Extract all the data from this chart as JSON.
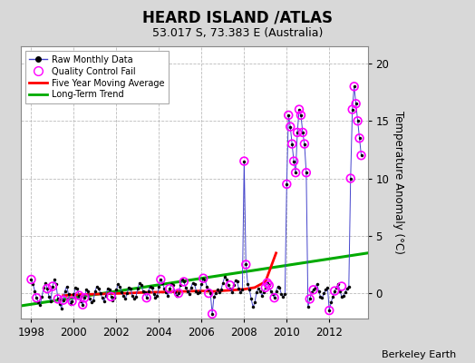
{
  "title": "HEARD ISLAND /ATLAS",
  "subtitle": "53.017 S, 73.383 E (Australia)",
  "ylabel": "Temperature Anomaly (°C)",
  "credit": "Berkeley Earth",
  "xlim": [
    1997.5,
    2013.8
  ],
  "ylim": [
    -2.2,
    21.5
  ],
  "yticks": [
    0,
    5,
    10,
    15,
    20
  ],
  "xticks": [
    1998,
    2000,
    2002,
    2004,
    2006,
    2008,
    2010,
    2012
  ],
  "background_color": "#d8d8d8",
  "plot_bg_color": "#ffffff",
  "grid_color": "#bbbbbb",
  "raw_color": "#4444cc",
  "qc_color": "#ff00ff",
  "ma_color": "#ff0000",
  "trend_color": "#00aa00",
  "raw_monthly_x": [
    1998.0,
    1998.083,
    1998.167,
    1998.25,
    1998.333,
    1998.417,
    1998.5,
    1998.583,
    1998.667,
    1998.75,
    1998.833,
    1998.917,
    1999.0,
    1999.083,
    1999.167,
    1999.25,
    1999.333,
    1999.417,
    1999.5,
    1999.583,
    1999.667,
    1999.75,
    1999.833,
    1999.917,
    2000.0,
    2000.083,
    2000.167,
    2000.25,
    2000.333,
    2000.417,
    2000.5,
    2000.583,
    2000.667,
    2000.75,
    2000.833,
    2000.917,
    2001.0,
    2001.083,
    2001.167,
    2001.25,
    2001.333,
    2001.417,
    2001.5,
    2001.583,
    2001.667,
    2001.75,
    2001.833,
    2001.917,
    2002.0,
    2002.083,
    2002.167,
    2002.25,
    2002.333,
    2002.417,
    2002.5,
    2002.583,
    2002.667,
    2002.75,
    2002.833,
    2002.917,
    2003.0,
    2003.083,
    2003.167,
    2003.25,
    2003.333,
    2003.417,
    2003.5,
    2003.583,
    2003.667,
    2003.75,
    2003.833,
    2003.917,
    2004.0,
    2004.083,
    2004.167,
    2004.25,
    2004.333,
    2004.417,
    2004.5,
    2004.583,
    2004.667,
    2004.75,
    2004.833,
    2004.917,
    2005.0,
    2005.083,
    2005.167,
    2005.25,
    2005.333,
    2005.417,
    2005.5,
    2005.583,
    2005.667,
    2005.75,
    2005.833,
    2005.917,
    2006.0,
    2006.083,
    2006.167,
    2006.25,
    2006.333,
    2006.417,
    2006.5,
    2006.583,
    2006.667,
    2006.75,
    2006.833,
    2006.917,
    2007.0,
    2007.083,
    2007.167,
    2007.25,
    2007.333,
    2007.417,
    2007.5,
    2007.583,
    2007.667,
    2007.75,
    2007.833,
    2007.917,
    2008.0,
    2008.083,
    2008.167,
    2008.25,
    2008.333,
    2008.417,
    2008.5,
    2008.583,
    2008.667,
    2008.75,
    2008.833,
    2008.917,
    2009.0,
    2009.083,
    2009.167,
    2009.25,
    2009.333,
    2009.417,
    2009.5,
    2009.583,
    2009.667,
    2009.75,
    2009.833,
    2009.917,
    2010.0,
    2010.083,
    2010.167,
    2010.25,
    2010.333,
    2010.417,
    2010.5,
    2010.583,
    2010.667,
    2010.75,
    2010.833,
    2010.917,
    2011.0,
    2011.083,
    2011.167,
    2011.25,
    2011.333,
    2011.417,
    2011.5,
    2011.583,
    2011.667,
    2011.75,
    2011.833,
    2011.917,
    2012.0,
    2012.083,
    2012.167,
    2012.25,
    2012.333,
    2012.417,
    2012.5,
    2012.583,
    2012.667,
    2012.75,
    2012.833,
    2012.917,
    2013.0,
    2013.083,
    2013.167,
    2013.25,
    2013.333,
    2013.417,
    2013.5
  ],
  "raw_monthly_y": [
    1.2,
    0.8,
    0.2,
    -0.4,
    -0.8,
    -1.0,
    -0.3,
    0.5,
    0.9,
    0.4,
    -0.3,
    -0.7,
    0.6,
    1.2,
    0.8,
    -0.5,
    -0.9,
    -1.3,
    -0.6,
    0.2,
    0.6,
    -0.1,
    -0.9,
    -0.7,
    -0.1,
    0.5,
    0.4,
    -0.2,
    -0.7,
    -1.0,
    -0.4,
    0.3,
    0.2,
    -0.5,
    -0.8,
    -0.6,
    0.2,
    0.6,
    0.4,
    0.0,
    -0.4,
    -0.7,
    -0.2,
    0.4,
    0.3,
    -0.3,
    -0.6,
    -0.4,
    0.3,
    0.8,
    0.6,
    0.1,
    -0.2,
    -0.5,
    0.0,
    0.5,
    0.4,
    -0.2,
    -0.5,
    -0.3,
    0.4,
    0.9,
    0.7,
    0.2,
    0.1,
    -0.4,
    0.2,
    0.6,
    0.5,
    -0.1,
    -0.4,
    -0.2,
    0.6,
    1.2,
    0.9,
    0.4,
    0.1,
    -0.2,
    0.4,
    0.8,
    0.7,
    0.1,
    -0.2,
    0.0,
    0.7,
    1.2,
    1.0,
    0.5,
    0.2,
    -0.1,
    0.5,
    0.9,
    0.8,
    0.2,
    0.0,
    0.1,
    0.8,
    1.3,
    1.1,
    0.6,
    0.3,
    0.0,
    -1.8,
    -0.3,
    0.0,
    0.3,
    0.1,
    0.3,
    0.9,
    1.4,
    1.2,
    0.7,
    0.4,
    0.1,
    0.7,
    1.1,
    1.0,
    0.4,
    0.1,
    0.3,
    11.5,
    2.5,
    0.8,
    0.3,
    -0.5,
    -1.2,
    -0.8,
    0.1,
    0.4,
    0.2,
    -0.2,
    0.1,
    0.5,
    0.9,
    0.7,
    0.2,
    -0.1,
    -0.4,
    0.2,
    0.6,
    0.5,
    -0.1,
    -0.3,
    -0.1,
    9.5,
    15.5,
    14.5,
    13.0,
    11.5,
    10.5,
    14.0,
    16.0,
    15.5,
    14.0,
    13.0,
    10.5,
    -1.2,
    -0.5,
    0.1,
    0.3,
    0.5,
    0.8,
    0.2,
    -0.3,
    -0.4,
    0.0,
    0.3,
    0.5,
    -1.5,
    -0.8,
    -0.3,
    0.2,
    0.5,
    0.8,
    0.2,
    -0.3,
    -0.2,
    0.1,
    0.4,
    0.6,
    10.0,
    16.0,
    18.0,
    16.5,
    15.0,
    13.5,
    12.0
  ],
  "qc_fail_x": [
    1998.0,
    1998.25,
    1998.75,
    1999.0,
    1999.25,
    1999.5,
    1999.917,
    2000.25,
    2000.417,
    2000.5,
    2001.75,
    2003.417,
    2004.083,
    2004.5,
    2004.917,
    2005.167,
    2006.083,
    2006.333,
    2006.5,
    2007.333,
    2008.0,
    2008.083,
    2009.0,
    2009.083,
    2009.167,
    2009.417,
    2010.0,
    2010.083,
    2010.167,
    2010.25,
    2010.333,
    2010.417,
    2010.5,
    2010.583,
    2010.667,
    2010.75,
    2010.833,
    2010.917,
    2011.083,
    2011.25,
    2012.0,
    2012.25,
    2012.583,
    2013.0,
    2013.083,
    2013.167,
    2013.25,
    2013.333,
    2013.417,
    2013.5
  ],
  "qc_fail_y": [
    1.2,
    -0.4,
    0.4,
    0.6,
    -0.5,
    -0.6,
    -0.7,
    -0.2,
    -1.0,
    -0.4,
    -0.3,
    -0.4,
    1.2,
    0.4,
    0.0,
    1.0,
    1.3,
    0.0,
    -1.8,
    0.7,
    11.5,
    2.5,
    0.5,
    0.9,
    0.7,
    -0.4,
    9.5,
    15.5,
    14.5,
    13.0,
    11.5,
    10.5,
    14.0,
    16.0,
    15.5,
    14.0,
    13.0,
    10.5,
    -0.5,
    0.3,
    -1.5,
    0.2,
    0.6,
    10.0,
    16.0,
    18.0,
    16.5,
    15.0,
    13.5,
    12.0
  ],
  "moving_avg_x": [
    1999.5,
    2000.0,
    2000.5,
    2001.0,
    2001.5,
    2002.0,
    2002.5,
    2003.0,
    2003.5,
    2004.0,
    2004.5,
    2005.0,
    2005.5,
    2006.0,
    2006.5,
    2007.0,
    2007.5,
    2008.0,
    2008.5,
    2009.0,
    2009.3,
    2009.5
  ],
  "moving_avg_y": [
    -0.2,
    -0.15,
    -0.1,
    -0.08,
    -0.05,
    -0.02,
    0.0,
    0.05,
    0.08,
    0.1,
    0.12,
    0.15,
    0.18,
    0.2,
    0.15,
    0.22,
    0.28,
    0.35,
    0.5,
    1.0,
    2.5,
    3.5
  ],
  "trend_x": [
    1997.5,
    2013.8
  ],
  "trend_y": [
    -1.1,
    3.5
  ]
}
